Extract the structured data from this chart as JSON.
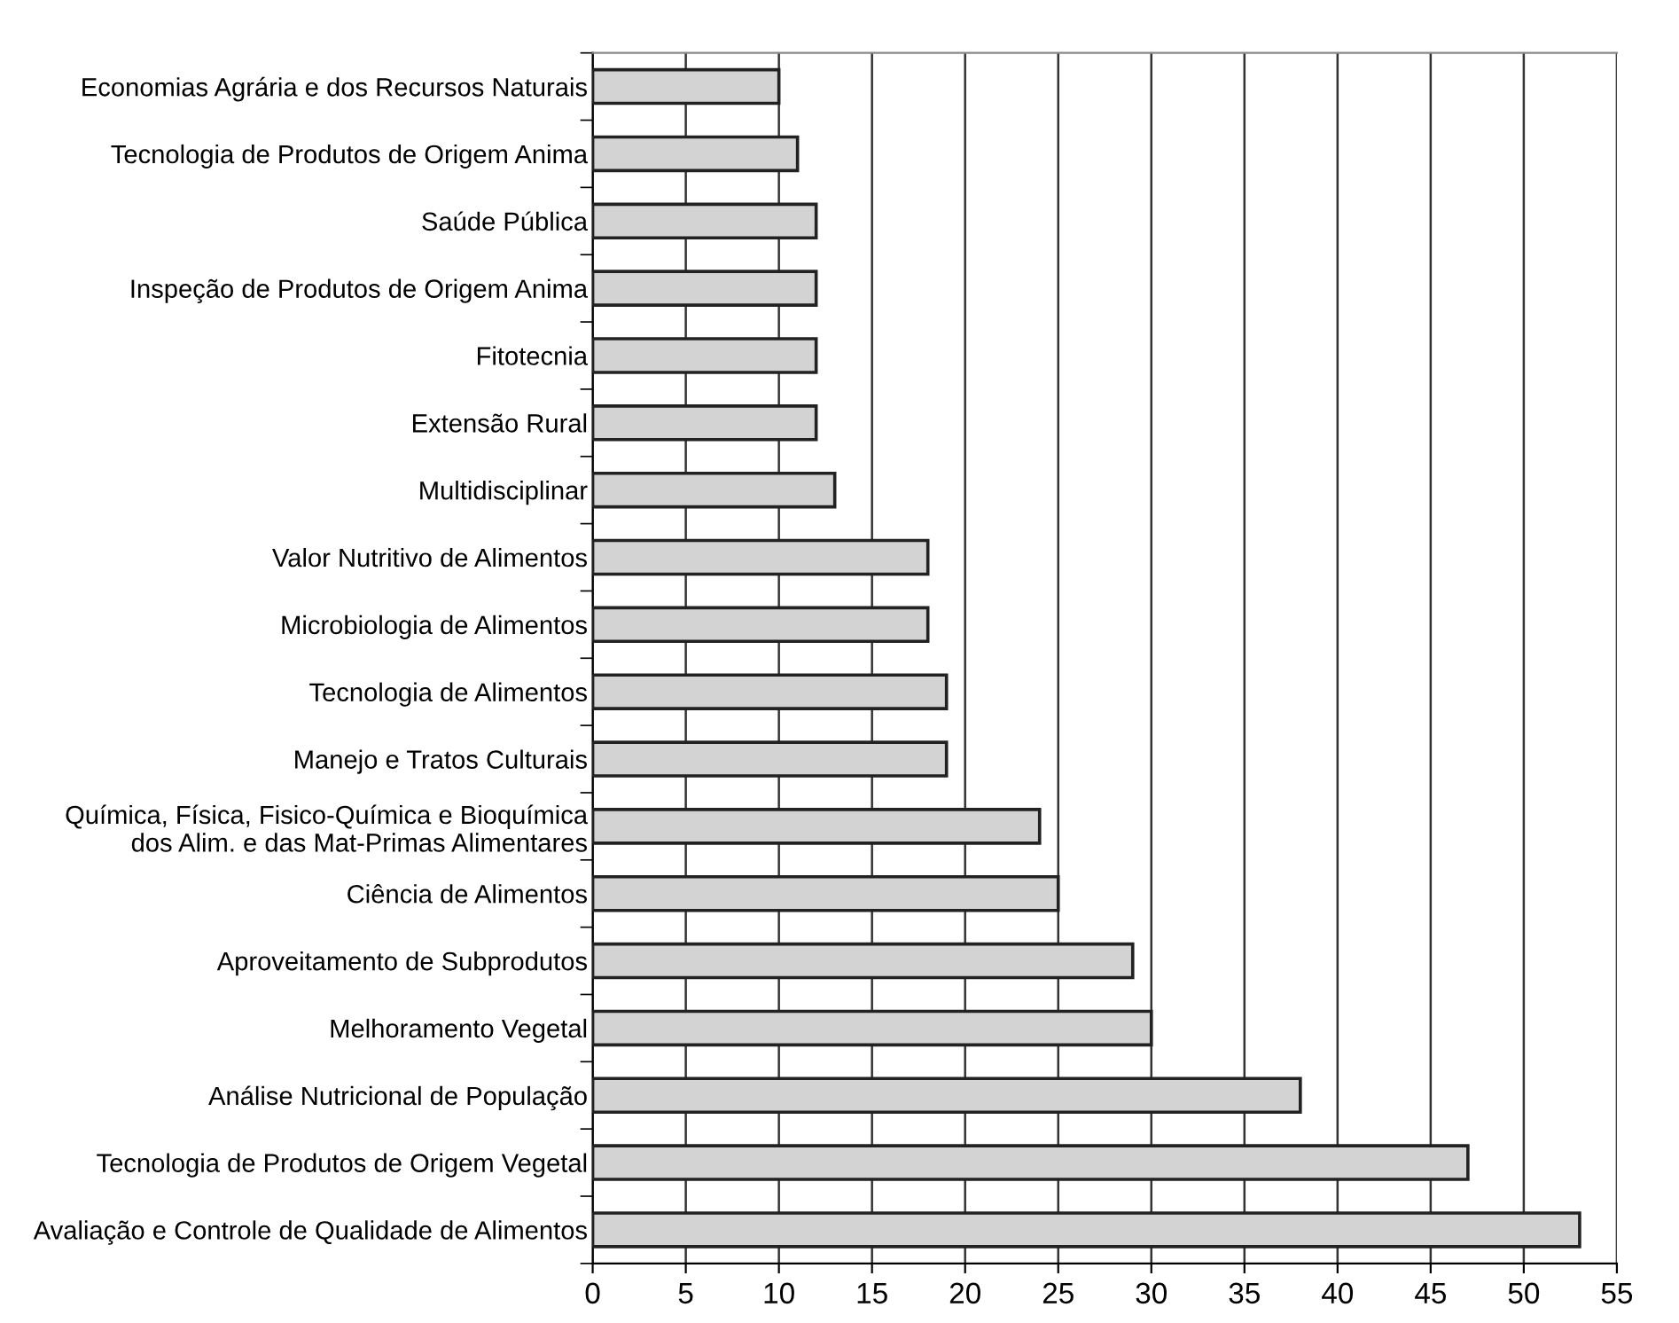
{
  "chart_data": {
    "type": "bar",
    "orientation": "horizontal",
    "categories": [
      "Economias Agrária e dos Recursos Naturais",
      "Tecnologia de Produtos de Origem Anima",
      "Saúde Pública",
      "Inspeção de Produtos de Origem Anima",
      "Fitotecnia",
      "Extensão Rural",
      "Multidisciplinar",
      "Valor Nutritivo de Alimentos",
      "Microbiologia de Alimentos",
      "Tecnologia de Alimentos",
      "Manejo e Tratos Culturais",
      "Química, Física, Fisico-Química e Bioquímica\ndos Alim. e das Mat-Primas Alimentares",
      "Ciência de Alimentos",
      "Aproveitamento de Subprodutos",
      "Melhoramento Vegetal",
      "Análise Nutricional de População",
      "Tecnologia de Produtos de Origem Vegetal",
      "Avaliação e Controle de Qualidade de Alimentos"
    ],
    "values": [
      10,
      11,
      12,
      12,
      12,
      12,
      13,
      18,
      18,
      19,
      19,
      24,
      25,
      29,
      30,
      38,
      47,
      53
    ],
    "color": "#d3d3d3",
    "xlim": [
      0,
      55
    ],
    "xticks": [
      0,
      5,
      10,
      15,
      20,
      25,
      30,
      35,
      40,
      45,
      50,
      55
    ],
    "grid": "x"
  }
}
